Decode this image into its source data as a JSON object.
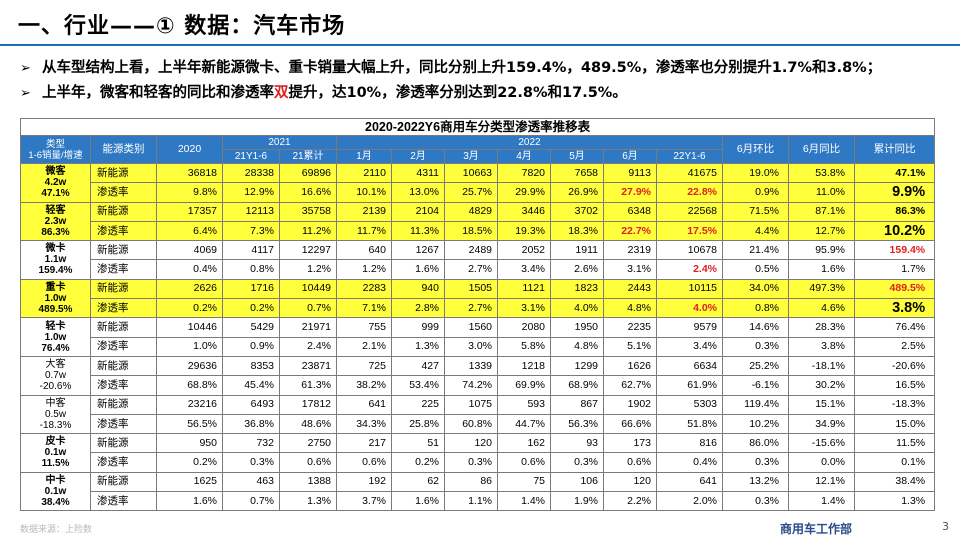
{
  "slide": {
    "title": "一、行业——① 数据：汽车市场",
    "bullets": [
      {
        "marker": "➢",
        "text": "从车型结构上看，上半年新能源微卡、重卡销量大幅上升，同比分别上升159.4%，489.5%，渗透率也分别提升1.7%和3.8%；"
      },
      {
        "marker": "➢",
        "pre": "上半年，微客和轻客的同比和渗透率",
        "highlight": "双",
        "post": "提升，达10%，渗透率分别达到22.8%和17.5%。"
      }
    ],
    "source": "数据来源：上险数",
    "footer": "商用车工作部",
    "page_number": "3",
    "colors": {
      "header_blue": "#2f78c4",
      "highlight_yellow": "#ffff3c",
      "red": "#e02020",
      "title_line": "#1f6fb6"
    }
  },
  "table": {
    "caption": "2020-2022Y6商用车分类型渗透率推移表",
    "header": {
      "type_col": "类型\n1-6销量/增速",
      "energy_col": "能源类别",
      "y2020": "2020",
      "y2021": "2021",
      "y2021_sub": [
        "21Y1-6",
        "21累计"
      ],
      "y2022": "2022",
      "y2022_sub": [
        "1月",
        "2月",
        "3月",
        "4月",
        "5月",
        "6月",
        "22Y1-6"
      ],
      "mom": "6月环比",
      "yoy": "6月同比",
      "cum_yoy": "累计同比"
    },
    "groups": [
      {
        "label": "微客\n4.2w\n47.1%",
        "highlight": true,
        "rows": [
          {
            "energy": "新能源",
            "values": [
              "36818",
              "28338",
              "69896",
              "2110",
              "4311",
              "10663",
              "7820",
              "7658",
              "9113",
              "41675",
              "19.0%",
              "53.8%",
              "47.1%"
            ],
            "red_idx": [],
            "last_style": "bold"
          },
          {
            "energy": "渗透率",
            "values": [
              "9.8%",
              "12.9%",
              "16.6%",
              "10.1%",
              "13.0%",
              "25.7%",
              "29.9%",
              "26.9%",
              "27.9%",
              "22.8%",
              "0.9%",
              "11.0%",
              "9.9%"
            ],
            "red_idx": [
              8,
              9
            ],
            "last_style": "big"
          }
        ]
      },
      {
        "label": "轻客\n2.3w\n86.3%",
        "highlight": true,
        "rows": [
          {
            "energy": "新能源",
            "values": [
              "17357",
              "12113",
              "35758",
              "2139",
              "2104",
              "4829",
              "3446",
              "3702",
              "6348",
              "22568",
              "71.5%",
              "87.1%",
              "86.3%"
            ],
            "red_idx": [],
            "last_style": "bold"
          },
          {
            "energy": "渗透率",
            "values": [
              "6.4%",
              "7.3%",
              "11.2%",
              "11.7%",
              "11.3%",
              "18.5%",
              "19.3%",
              "18.3%",
              "22.7%",
              "17.5%",
              "4.4%",
              "12.7%",
              "10.2%"
            ],
            "red_idx": [
              8,
              9
            ],
            "last_style": "big"
          }
        ]
      },
      {
        "label": "微卡\n1.1w\n159.4%",
        "highlight": false,
        "rows": [
          {
            "energy": "新能源",
            "values": [
              "4069",
              "4117",
              "12297",
              "640",
              "1267",
              "2489",
              "2052",
              "1911",
              "2319",
              "10678",
              "21.4%",
              "95.9%",
              "159.4%"
            ],
            "red_idx": [
              12
            ],
            "last_style": ""
          },
          {
            "energy": "渗透率",
            "values": [
              "0.4%",
              "0.8%",
              "1.2%",
              "1.2%",
              "1.6%",
              "2.7%",
              "3.4%",
              "2.6%",
              "3.1%",
              "2.4%",
              "0.5%",
              "1.6%",
              "1.7%"
            ],
            "red_idx": [
              9
            ],
            "last_style": ""
          }
        ]
      },
      {
        "label": "重卡\n1.0w\n489.5%",
        "highlight": true,
        "rows": [
          {
            "energy": "新能源",
            "values": [
              "2626",
              "1716",
              "10449",
              "2283",
              "940",
              "1505",
              "1121",
              "1823",
              "2443",
              "10115",
              "34.0%",
              "497.3%",
              "489.5%"
            ],
            "red_idx": [
              12
            ],
            "last_style": ""
          },
          {
            "energy": "渗透率",
            "values": [
              "0.2%",
              "0.2%",
              "0.7%",
              "7.1%",
              "2.8%",
              "2.7%",
              "3.1%",
              "4.0%",
              "4.8%",
              "4.0%",
              "0.8%",
              "4.6%",
              "3.8%"
            ],
            "red_idx": [
              9
            ],
            "last_style": "big"
          }
        ]
      },
      {
        "label": "轻卡\n1.0w\n76.4%",
        "highlight": false,
        "rows": [
          {
            "energy": "新能源",
            "values": [
              "10446",
              "5429",
              "21971",
              "755",
              "999",
              "1560",
              "2080",
              "1950",
              "2235",
              "9579",
              "14.6%",
              "28.3%",
              "76.4%"
            ],
            "red_idx": [],
            "last_style": ""
          },
          {
            "energy": "渗透率",
            "values": [
              "1.0%",
              "0.9%",
              "2.4%",
              "2.1%",
              "1.3%",
              "3.0%",
              "5.8%",
              "4.8%",
              "5.1%",
              "3.4%",
              "0.3%",
              "3.8%",
              "2.5%"
            ],
            "red_idx": [],
            "last_style": ""
          }
        ]
      },
      {
        "label": "大客\n0.7w\n-20.6%",
        "highlight": false,
        "label_plain": true,
        "rows": [
          {
            "energy": "新能源",
            "values": [
              "29636",
              "8353",
              "23871",
              "725",
              "427",
              "1339",
              "1218",
              "1299",
              "1626",
              "6634",
              "25.2%",
              "-18.1%",
              "-20.6%"
            ],
            "red_idx": [],
            "last_style": ""
          },
          {
            "energy": "渗透率",
            "values": [
              "68.8%",
              "45.4%",
              "61.3%",
              "38.2%",
              "53.4%",
              "74.2%",
              "69.9%",
              "68.9%",
              "62.7%",
              "61.9%",
              "-6.1%",
              "30.2%",
              "16.5%"
            ],
            "red_idx": [],
            "last_style": ""
          }
        ]
      },
      {
        "label": "中客\n0.5w\n-18.3%",
        "highlight": false,
        "label_plain": true,
        "rows": [
          {
            "energy": "新能源",
            "values": [
              "23216",
              "6493",
              "17812",
              "641",
              "225",
              "1075",
              "593",
              "867",
              "1902",
              "5303",
              "119.4%",
              "15.1%",
              "-18.3%"
            ],
            "red_idx": [],
            "last_style": ""
          },
          {
            "energy": "渗透率",
            "values": [
              "56.5%",
              "36.8%",
              "48.6%",
              "34.3%",
              "25.8%",
              "60.8%",
              "44.7%",
              "56.3%",
              "66.6%",
              "51.8%",
              "10.2%",
              "34.9%",
              "15.0%"
            ],
            "red_idx": [],
            "last_style": ""
          }
        ]
      },
      {
        "label": "皮卡\n0.1w\n11.5%",
        "highlight": false,
        "rows": [
          {
            "energy": "新能源",
            "values": [
              "950",
              "732",
              "2750",
              "217",
              "51",
              "120",
              "162",
              "93",
              "173",
              "816",
              "86.0%",
              "-15.6%",
              "11.5%"
            ],
            "red_idx": [],
            "last_style": ""
          },
          {
            "energy": "渗透率",
            "values": [
              "0.2%",
              "0.3%",
              "0.6%",
              "0.6%",
              "0.2%",
              "0.3%",
              "0.6%",
              "0.3%",
              "0.6%",
              "0.4%",
              "0.3%",
              "0.0%",
              "0.1%"
            ],
            "red_idx": [],
            "last_style": ""
          }
        ]
      },
      {
        "label": "中卡\n0.1w\n38.4%",
        "highlight": false,
        "rows": [
          {
            "energy": "新能源",
            "values": [
              "1625",
              "463",
              "1388",
              "192",
              "62",
              "86",
              "75",
              "106",
              "120",
              "641",
              "13.2%",
              "12.1%",
              "38.4%"
            ],
            "red_idx": [],
            "last_style": ""
          },
          {
            "energy": "渗透率",
            "values": [
              "1.6%",
              "0.7%",
              "1.3%",
              "3.7%",
              "1.6%",
              "1.1%",
              "1.4%",
              "1.9%",
              "2.2%",
              "2.0%",
              "0.3%",
              "1.4%",
              "1.3%"
            ],
            "red_idx": [],
            "last_style": ""
          }
        ]
      }
    ]
  }
}
